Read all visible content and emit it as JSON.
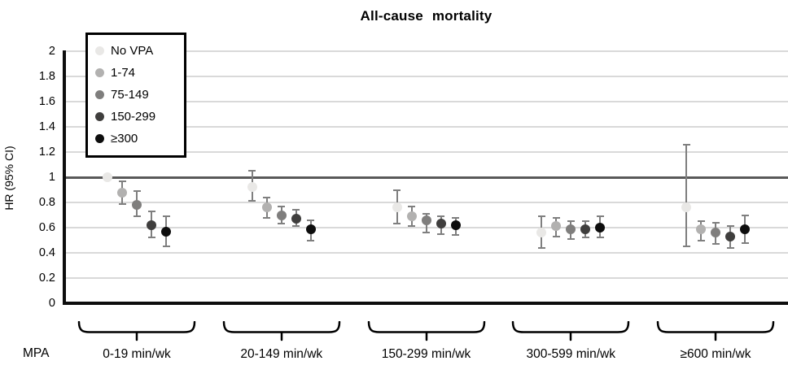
{
  "chart_data": {
    "type": "scatter",
    "title": "All-cause mortality",
    "ylabel": "HR (95% CI)",
    "xlabel": "MPA",
    "ylim": [
      0,
      2
    ],
    "ytick_step": 0.2,
    "reference_line": 1.0,
    "grid": true,
    "legend_position": "top-left",
    "groups": [
      "0-19 min/wk",
      "20-149 min/wk",
      "150-299 min/wk",
      "300-599 min/wk",
      "≥600 min/wk"
    ],
    "series": [
      {
        "name": "No VPA",
        "color": "#e9e8e6",
        "points": [
          {
            "hr": 1.0,
            "lo": 1.0,
            "hi": 1.0
          },
          {
            "hr": 0.92,
            "lo": 0.81,
            "hi": 1.05
          },
          {
            "hr": 0.76,
            "lo": 0.63,
            "hi": 0.9
          },
          {
            "hr": 0.56,
            "lo": 0.44,
            "hi": 0.69
          },
          {
            "hr": 0.76,
            "lo": 0.45,
            "hi": 1.26
          }
        ]
      },
      {
        "name": "1-74",
        "color": "#b2b1b0",
        "points": [
          {
            "hr": 0.88,
            "lo": 0.79,
            "hi": 0.97
          },
          {
            "hr": 0.76,
            "lo": 0.68,
            "hi": 0.84
          },
          {
            "hr": 0.69,
            "lo": 0.61,
            "hi": 0.77
          },
          {
            "hr": 0.61,
            "lo": 0.53,
            "hi": 0.68
          },
          {
            "hr": 0.59,
            "lo": 0.5,
            "hi": 0.65
          }
        ]
      },
      {
        "name": "75-149",
        "color": "#7f7e7d",
        "points": [
          {
            "hr": 0.78,
            "lo": 0.69,
            "hi": 0.89
          },
          {
            "hr": 0.7,
            "lo": 0.63,
            "hi": 0.77
          },
          {
            "hr": 0.66,
            "lo": 0.56,
            "hi": 0.71
          },
          {
            "hr": 0.59,
            "lo": 0.51,
            "hi": 0.65
          },
          {
            "hr": 0.56,
            "lo": 0.47,
            "hi": 0.64
          }
        ]
      },
      {
        "name": "150-299",
        "color": "#3f3e3d",
        "points": [
          {
            "hr": 0.62,
            "lo": 0.52,
            "hi": 0.73
          },
          {
            "hr": 0.67,
            "lo": 0.61,
            "hi": 0.74
          },
          {
            "hr": 0.63,
            "lo": 0.55,
            "hi": 0.69
          },
          {
            "hr": 0.59,
            "lo": 0.52,
            "hi": 0.65
          },
          {
            "hr": 0.53,
            "lo": 0.44,
            "hi": 0.61
          }
        ]
      },
      {
        "name": "≥300",
        "color": "#0d0d0d",
        "points": [
          {
            "hr": 0.57,
            "lo": 0.45,
            "hi": 0.69
          },
          {
            "hr": 0.59,
            "lo": 0.5,
            "hi": 0.66
          },
          {
            "hr": 0.62,
            "lo": 0.54,
            "hi": 0.68
          },
          {
            "hr": 0.6,
            "lo": 0.52,
            "hi": 0.69
          },
          {
            "hr": 0.59,
            "lo": 0.48,
            "hi": 0.7
          }
        ]
      }
    ],
    "colors": {
      "gridline": "#d9d9d9",
      "reference_line": "#595959",
      "axis": "#0d0d0d",
      "error_bar": "#7f7f7f"
    }
  }
}
